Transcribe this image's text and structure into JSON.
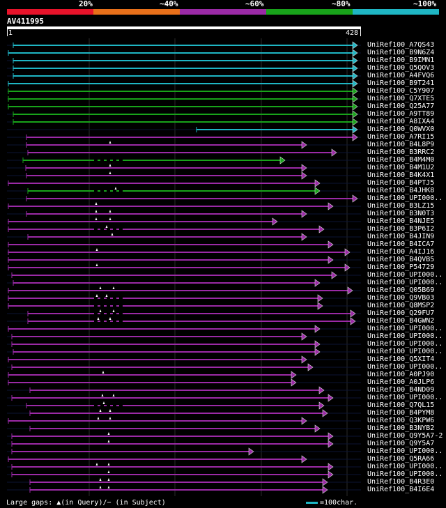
{
  "legend": {
    "colors": [
      "#e8132a",
      "#e8701a",
      "#9b2aa6",
      "#18a31a",
      "#1fb6c4"
    ],
    "labels": [
      "20%",
      "~40%",
      "~60%",
      "~80%",
      "~100%"
    ]
  },
  "query": {
    "name": "AV411995",
    "start": "1",
    "end": "428"
  },
  "hits": [
    {
      "name": "UniRef100_A7QS43",
      "color": "#1fb6c4",
      "start": 19,
      "end": 513,
      "gap": false,
      "marks": []
    },
    {
      "name": "UniRef100_B9N6Z4",
      "color": "#1fb6c4",
      "start": 12,
      "end": 513,
      "gap": false,
      "marks": []
    },
    {
      "name": "UniRef100_B9IMN1",
      "color": "#1fb6c4",
      "start": 19,
      "end": 513,
      "gap": false,
      "marks": []
    },
    {
      "name": "UniRef100_Q5QOV3",
      "color": "#1fb6c4",
      "start": 19,
      "end": 513,
      "gap": false,
      "marks": []
    },
    {
      "name": "UniRef100_A4FVQ6",
      "color": "#1fb6c4",
      "start": 19,
      "end": 513,
      "gap": false,
      "marks": []
    },
    {
      "name": "UniRef100_B9T241",
      "color": "#1fb6c4",
      "start": 12,
      "end": 513,
      "gap": false,
      "marks": []
    },
    {
      "name": "UniRef100_C5Y907",
      "color": "#18a31a",
      "start": 12,
      "end": 513,
      "gap": false,
      "marks": []
    },
    {
      "name": "UniRef100_Q7XTE5",
      "color": "#18a31a",
      "start": 12,
      "end": 513,
      "gap": false,
      "marks": []
    },
    {
      "name": "UniRef100_Q25A77",
      "color": "#18a31a",
      "start": 12,
      "end": 513,
      "gap": false,
      "marks": []
    },
    {
      "name": "UniRef100_A9TT89",
      "color": "#18a31a",
      "start": 19,
      "end": 513,
      "gap": false,
      "marks": []
    },
    {
      "name": "UniRef100_A8IXA4",
      "color": "#18a31a",
      "start": 19,
      "end": 513,
      "gap": false,
      "marks": []
    },
    {
      "name": "UniRef100_Q0WVX0",
      "color": "#1fb6c4",
      "start": 282,
      "end": 513,
      "gap": false,
      "marks": []
    },
    {
      "name": "UniRef100_A7RI15",
      "color": "#9b2aa6",
      "start": 38,
      "end": 513,
      "gap": false,
      "marks": []
    },
    {
      "name": "UniRef100_B4L8P9",
      "color": "#9b2aa6",
      "start": 38,
      "end": 440,
      "gap": false,
      "marks": [
        158
      ]
    },
    {
      "name": "UniRef100_B3RRC2",
      "color": "#9b2aa6",
      "start": 40,
      "end": 483,
      "gap": false,
      "marks": []
    },
    {
      "name": "UniRef100_B4M4M0",
      "color": "#18a31a",
      "start": 33,
      "end": 409,
      "gap": true,
      "marks": []
    },
    {
      "name": "UniRef100_B4M1U2",
      "color": "#9b2aa6",
      "start": 37,
      "end": 440,
      "gap": false,
      "marks": [
        158
      ]
    },
    {
      "name": "UniRef100_B4K4X1",
      "color": "#9b2aa6",
      "start": 38,
      "end": 440,
      "gap": false,
      "marks": [
        158
      ]
    },
    {
      "name": "UniRef100_B4PTJ5",
      "color": "#9b2aa6",
      "start": 12,
      "end": 459,
      "gap": false,
      "marks": []
    },
    {
      "name": "UniRef100_B4JHK8",
      "color": "#18a31a",
      "start": 40,
      "end": 459,
      "gap": true,
      "marks": [
        166
      ]
    },
    {
      "name": "UniRef100_UPI000..",
      "color": "#9b2aa6",
      "start": 38,
      "end": 513,
      "gap": false,
      "marks": []
    },
    {
      "name": "UniRef100_B3LZ15",
      "color": "#9b2aa6",
      "start": 12,
      "end": 478,
      "gap": false,
      "marks": [
        138
      ]
    },
    {
      "name": "UniRef100_B3N0T3",
      "color": "#9b2aa6",
      "start": 38,
      "end": 440,
      "gap": false,
      "marks": [
        138,
        158
      ]
    },
    {
      "name": "UniRef100_B4NJE5",
      "color": "#9b2aa6",
      "start": 12,
      "end": 398,
      "gap": false,
      "marks": [
        138,
        158
      ]
    },
    {
      "name": "UniRef100_B3P6I2",
      "color": "#9b2aa6",
      "start": 12,
      "end": 465,
      "gap": true,
      "marks": [
        153
      ]
    },
    {
      "name": "UniRef100_B4JIN9",
      "color": "#9b2aa6",
      "start": 40,
      "end": 440,
      "gap": false,
      "marks": [
        161
      ]
    },
    {
      "name": "UniRef100_B4ICA7",
      "color": "#9b2aa6",
      "start": 12,
      "end": 478,
      "gap": false,
      "marks": []
    },
    {
      "name": "UniRef100_A4IJ16",
      "color": "#9b2aa6",
      "start": 12,
      "end": 502,
      "gap": false,
      "marks": [
        139
      ]
    },
    {
      "name": "UniRef100_B4QVB5",
      "color": "#9b2aa6",
      "start": 12,
      "end": 478,
      "gap": false,
      "marks": []
    },
    {
      "name": "UniRef100_P54729",
      "color": "#9b2aa6",
      "start": 12,
      "end": 502,
      "gap": false,
      "marks": [
        139
      ]
    },
    {
      "name": "UniRef100_UPI000..",
      "color": "#9b2aa6",
      "start": 17,
      "end": 483,
      "gap": false,
      "marks": []
    },
    {
      "name": "UniRef100_UPI000..",
      "color": "#9b2aa6",
      "start": 19,
      "end": 459,
      "gap": false,
      "marks": []
    },
    {
      "name": "UniRef100_Q05B69",
      "color": "#9b2aa6",
      "start": 12,
      "end": 506,
      "gap": false,
      "marks": [
        144,
        163
      ]
    },
    {
      "name": "UniRef100_Q9VB03",
      "color": "#9b2aa6",
      "start": 12,
      "end": 463,
      "gap": true,
      "marks": [
        139,
        153
      ]
    },
    {
      "name": "UniRef100_Q8MSP2",
      "color": "#9b2aa6",
      "start": 12,
      "end": 463,
      "gap": true,
      "marks": []
    },
    {
      "name": "UniRef100_Q29FU7",
      "color": "#9b2aa6",
      "start": 40,
      "end": 510,
      "gap": true,
      "marks": [
        144,
        163
      ]
    },
    {
      "name": "UniRef100_B4GWN2",
      "color": "#9b2aa6",
      "start": 40,
      "end": 510,
      "gap": true,
      "marks": [
        141,
        158
      ]
    },
    {
      "name": "UniRef100_UPI000..",
      "color": "#9b2aa6",
      "start": 12,
      "end": 459,
      "gap": false,
      "marks": []
    },
    {
      "name": "UniRef100_UPI000..",
      "color": "#9b2aa6",
      "start": 17,
      "end": 440,
      "gap": false,
      "marks": []
    },
    {
      "name": "UniRef100_UPI000..",
      "color": "#9b2aa6",
      "start": 17,
      "end": 459,
      "gap": false,
      "marks": []
    },
    {
      "name": "UniRef100_UPI000..",
      "color": "#9b2aa6",
      "start": 19,
      "end": 459,
      "gap": false,
      "marks": []
    },
    {
      "name": "UniRef100_Q5XIT4",
      "color": "#9b2aa6",
      "start": 12,
      "end": 440,
      "gap": false,
      "marks": []
    },
    {
      "name": "UniRef100_UPI000..",
      "color": "#9b2aa6",
      "start": 17,
      "end": 449,
      "gap": false,
      "marks": []
    },
    {
      "name": "UniRef100_A0PJ90",
      "color": "#9b2aa6",
      "start": 12,
      "end": 425,
      "gap": false,
      "marks": [
        148
      ]
    },
    {
      "name": "UniRef100_A0JLP6",
      "color": "#9b2aa6",
      "start": 12,
      "end": 425,
      "gap": false,
      "marks": []
    },
    {
      "name": "UniRef100_B4ND09",
      "color": "#9b2aa6",
      "start": 43,
      "end": 465,
      "gap": false,
      "marks": []
    },
    {
      "name": "UniRef100_UPI000..",
      "color": "#9b2aa6",
      "start": 17,
      "end": 478,
      "gap": false,
      "marks": [
        147,
        163
      ]
    },
    {
      "name": "UniRef100_Q7QL15",
      "color": "#9b2aa6",
      "start": 38,
      "end": 465,
      "gap": true,
      "marks": [
        149
      ]
    },
    {
      "name": "UniRef100_B4PYM8",
      "color": "#9b2aa6",
      "start": 43,
      "end": 470,
      "gap": false,
      "marks": [
        144,
        158
      ]
    },
    {
      "name": "UniRef100_Q3KPW6",
      "color": "#9b2aa6",
      "start": 12,
      "end": 440,
      "gap": false,
      "marks": [
        141,
        158
      ]
    },
    {
      "name": "UniRef100_B3NYB2",
      "color": "#9b2aa6",
      "start": 43,
      "end": 459,
      "gap": false,
      "marks": []
    },
    {
      "name": "UniRef100_Q9Y5A7-2",
      "color": "#9b2aa6",
      "start": 17,
      "end": 478,
      "gap": false,
      "marks": [
        156
      ]
    },
    {
      "name": "UniRef100_Q9Y5A7",
      "color": "#9b2aa6",
      "start": 17,
      "end": 478,
      "gap": false,
      "marks": [
        156
      ]
    },
    {
      "name": "UniRef100_UPI000..",
      "color": "#9b2aa6",
      "start": 17,
      "end": 364,
      "gap": false,
      "marks": []
    },
    {
      "name": "UniRef100_Q5RA66",
      "color": "#9b2aa6",
      "start": 12,
      "end": 440,
      "gap": false,
      "marks": []
    },
    {
      "name": "UniRef100_UPI000..",
      "color": "#9b2aa6",
      "start": 17,
      "end": 478,
      "gap": false,
      "marks": [
        139,
        156
      ]
    },
    {
      "name": "UniRef100_UPI000..",
      "color": "#9b2aa6",
      "start": 17,
      "end": 478,
      "gap": false,
      "marks": [
        156
      ]
    },
    {
      "name": "UniRef100_B4R3E0",
      "color": "#9b2aa6",
      "start": 43,
      "end": 470,
      "gap": false,
      "marks": [
        144,
        156
      ]
    },
    {
      "name": "UniRef100_B4I6E4",
      "color": "#9b2aa6",
      "start": 43,
      "end": 470,
      "gap": false,
      "marks": [
        144,
        156
      ]
    }
  ],
  "footer": {
    "large_gaps": "Large gaps: ▲(in Query)/− (in Subject)",
    "scale": "=100char."
  }
}
